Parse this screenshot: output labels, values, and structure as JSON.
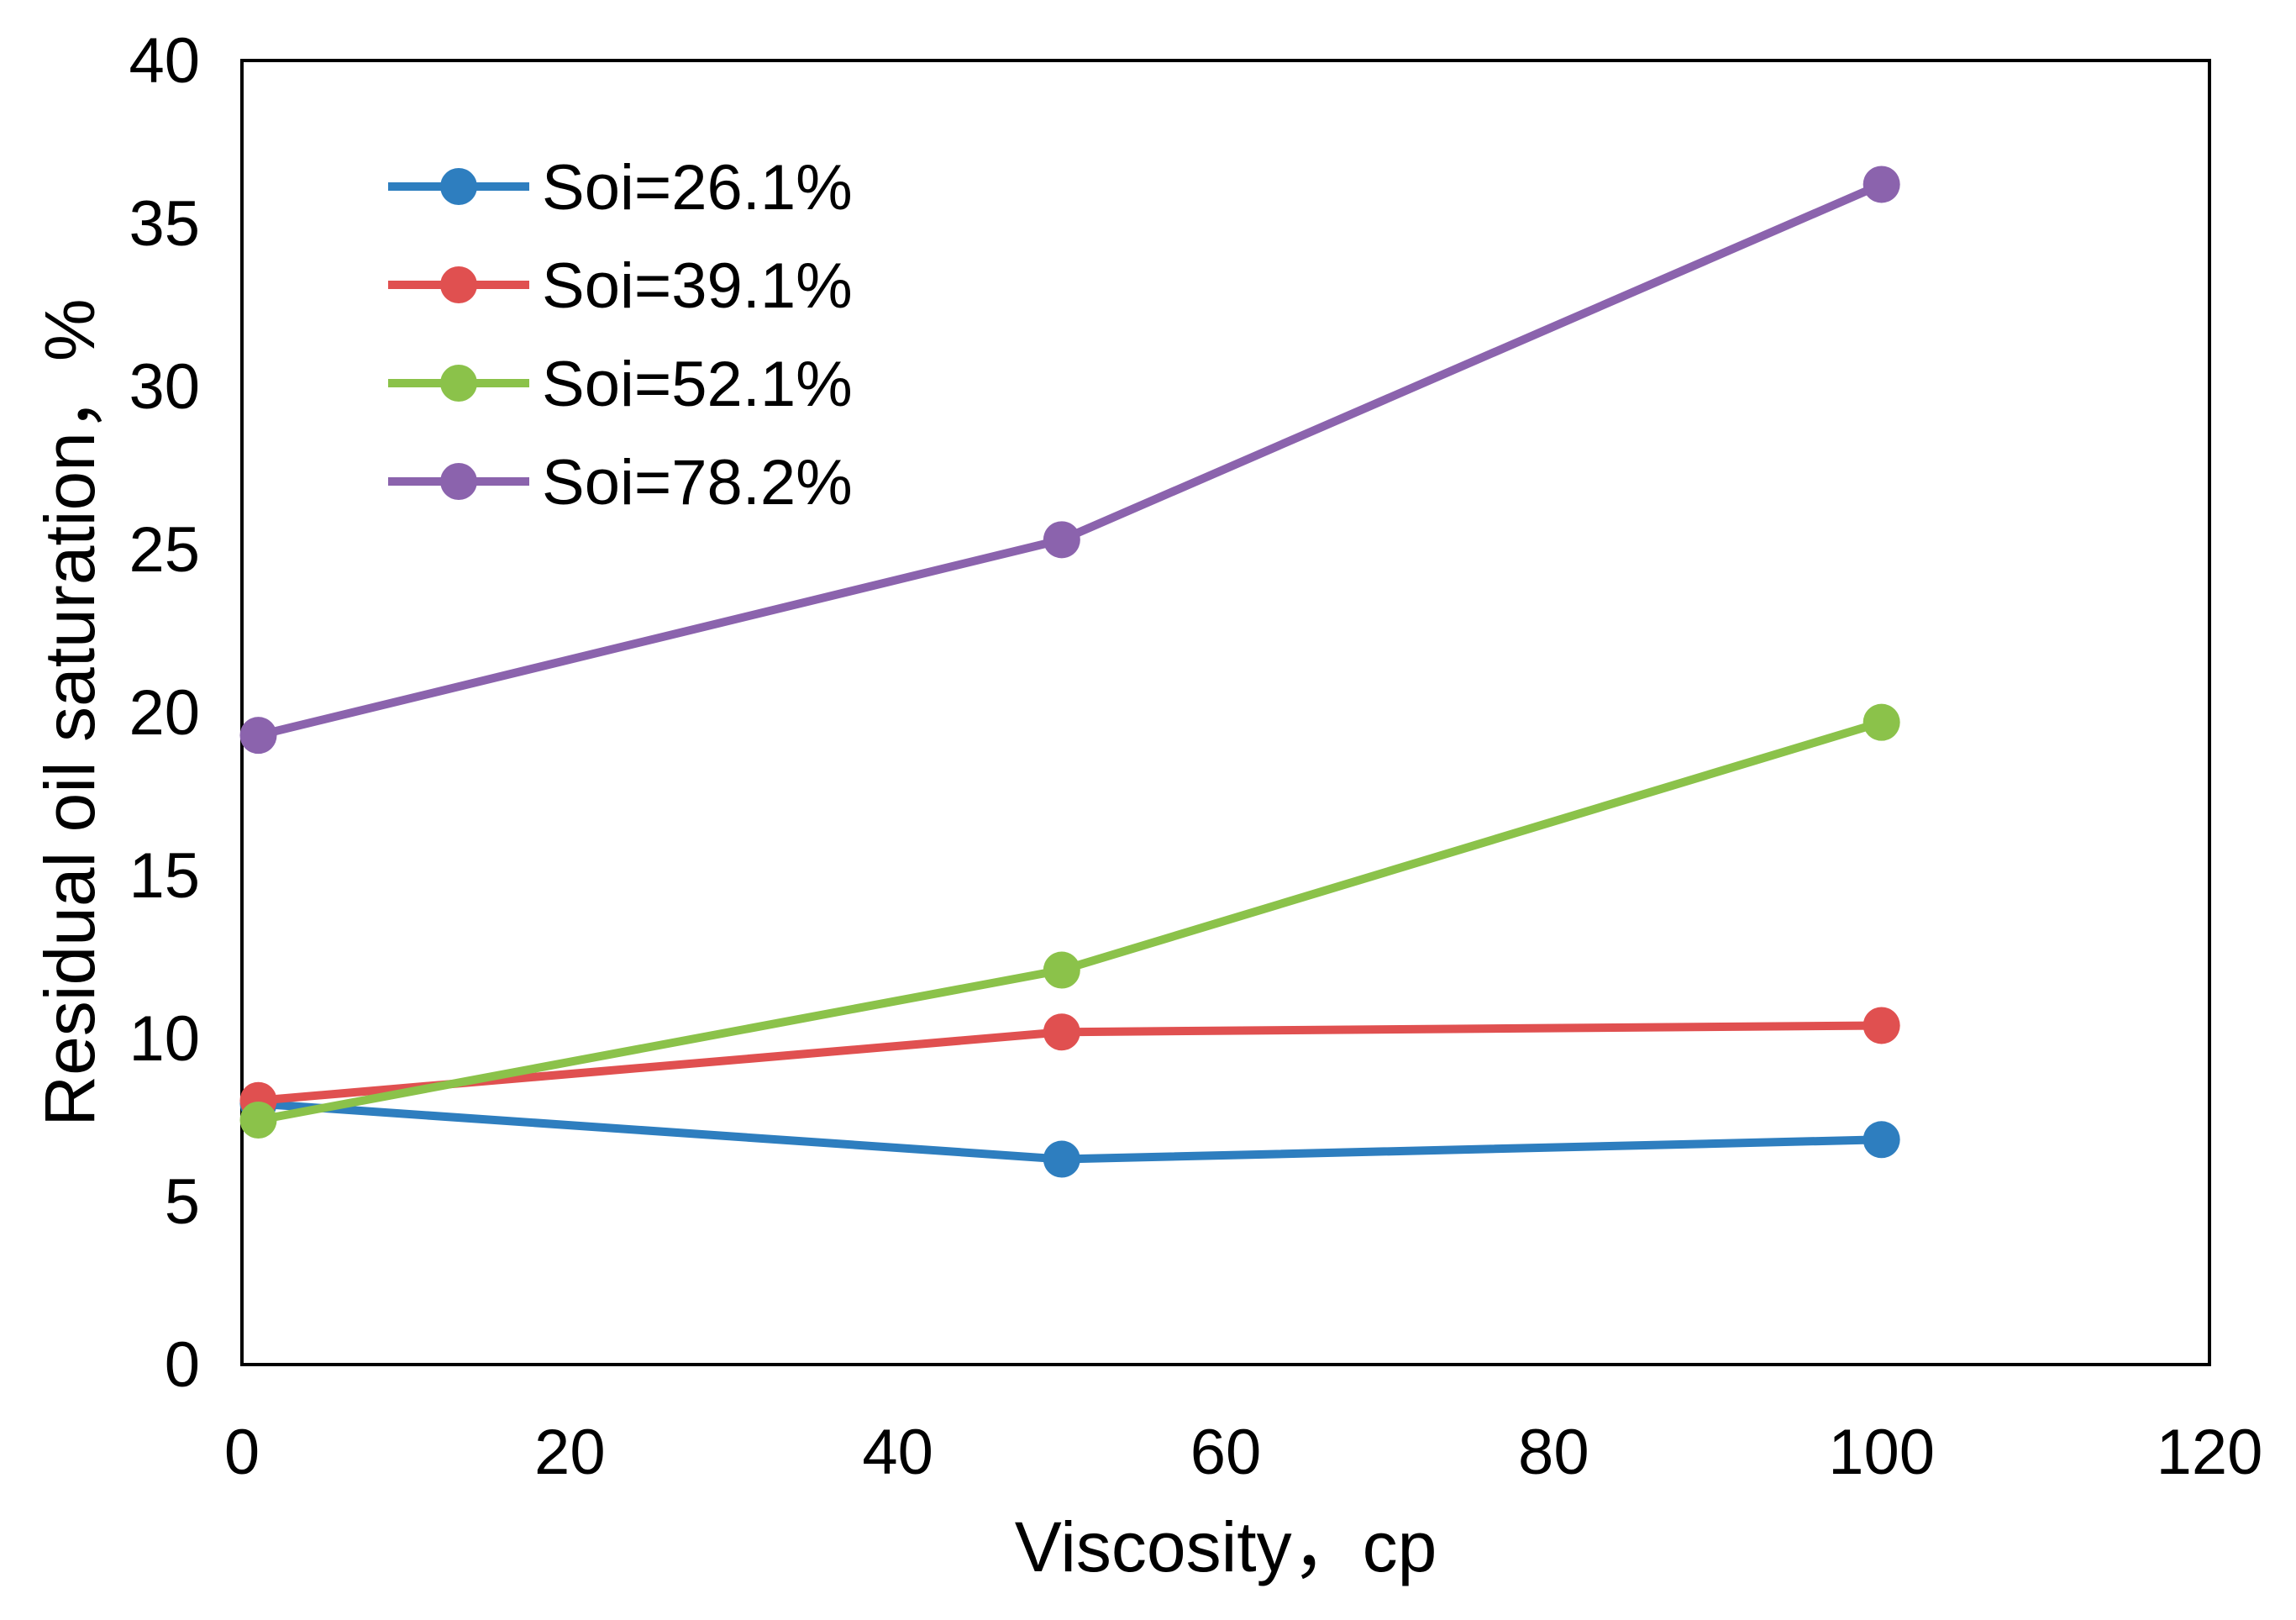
{
  "chart_data": {
    "type": "line",
    "title": "",
    "xlabel": "Viscosity，cp",
    "ylabel": "Residual oil saturation，%",
    "xlim": [
      0,
      120
    ],
    "ylim": [
      0,
      40
    ],
    "xticks": [
      "0",
      "20",
      "40",
      "60",
      "80",
      "100",
      "120"
    ],
    "yticks": [
      "0",
      "5",
      "10",
      "15",
      "20",
      "25",
      "30",
      "35",
      "40"
    ],
    "grid": false,
    "legend_position": "top-left",
    "x": [
      1,
      50,
      100
    ],
    "series": [
      {
        "name": "Soi=26.1%",
        "color": "#2e7ebf",
        "values": [
          8.0,
          6.3,
          6.9
        ]
      },
      {
        "name": "Soi=39.1%",
        "color": "#e05050",
        "values": [
          8.1,
          10.2,
          10.4
        ]
      },
      {
        "name": "Soi=52.1%",
        "color": "#8bc24a",
        "values": [
          7.5,
          12.1,
          19.7
        ]
      },
      {
        "name": "Soi=78.2%",
        "color": "#8b63ad",
        "values": [
          19.3,
          25.3,
          36.2
        ]
      }
    ]
  }
}
